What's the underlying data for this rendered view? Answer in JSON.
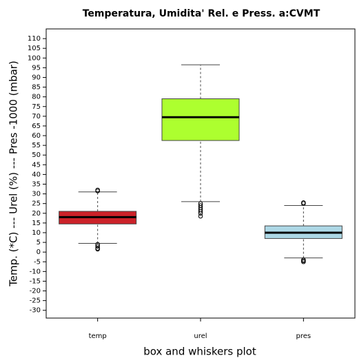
{
  "chart_data": {
    "type": "box",
    "title": "Temperatura, Umidita' Rel. e Press. a:CVMT",
    "y_label": "Temp. (*C) --- Urel (%) --- Pres -1000 (mbar)",
    "x_label": "box and whiskers plot",
    "categories": [
      "temp",
      "urel",
      "pres"
    ],
    "colors": [
      "#cc2229",
      "#adff2f",
      "#add8e6"
    ],
    "boxes": [
      {
        "min": 4.5,
        "q1": 14.5,
        "median": 18,
        "q3": 21,
        "max": 31,
        "outliers": [
          32,
          31.5,
          4,
          3,
          2,
          1.5
        ]
      },
      {
        "min": 26,
        "q1": 57.5,
        "median": 69.5,
        "q3": 79,
        "max": 96.5,
        "outliers": [
          25,
          24,
          23,
          22,
          21,
          20,
          18.5
        ]
      },
      {
        "min": -3,
        "q1": 7,
        "median": 10,
        "q3": 13.5,
        "max": 24,
        "outliers": [
          25.5,
          25,
          -4,
          -4.5,
          -5
        ]
      }
    ],
    "ylim": [
      -34,
      115
    ],
    "yticks": [
      -30,
      -25,
      -20,
      -15,
      -10,
      -5,
      0,
      5,
      10,
      15,
      20,
      25,
      30,
      35,
      40,
      45,
      50,
      55,
      60,
      65,
      70,
      75,
      80,
      85,
      90,
      95,
      100,
      105,
      110
    ],
    "grid": false
  }
}
